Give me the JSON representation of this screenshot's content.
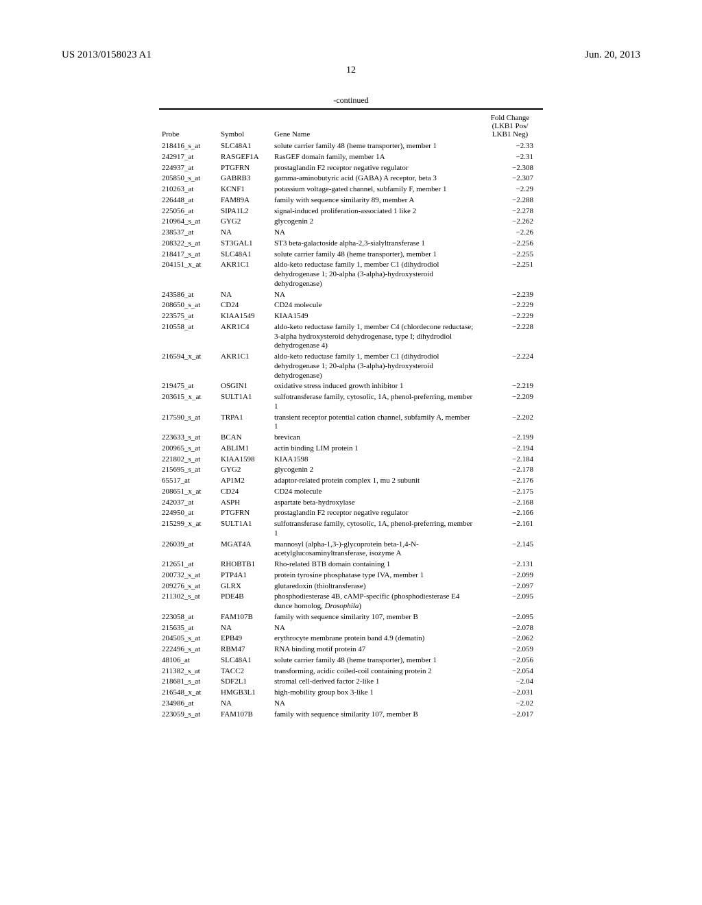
{
  "header": {
    "left": "US 2013/0158023 A1",
    "right": "Jun. 20, 2013"
  },
  "page_number": "12",
  "table": {
    "continued_label": "-continued",
    "columns": {
      "probe": "Probe",
      "symbol": "Symbol",
      "gene": "Gene Name",
      "fc_line1": "Fold Change",
      "fc_line2": "(LKB1 Pos/",
      "fc_line3": "LKB1 Neg)"
    },
    "rows": [
      {
        "probe": "218416_s_at",
        "symbol": "SLC48A1",
        "gene": "solute carrier family 48 (heme transporter), member 1",
        "fc": "−2.33"
      },
      {
        "probe": "242917_at",
        "symbol": "RASGEF1A",
        "gene": "RasGEF domain family, member 1A",
        "fc": "−2.31"
      },
      {
        "probe": "224937_at",
        "symbol": "PTGFRN",
        "gene": "prostaglandin F2 receptor negative regulator",
        "fc": "−2.308"
      },
      {
        "probe": "205850_s_at",
        "symbol": "GABRB3",
        "gene": "gamma-aminobutyric acid (GABA) A receptor, beta 3",
        "fc": "−2.307"
      },
      {
        "probe": "210263_at",
        "symbol": "KCNF1",
        "gene": "potassium voltage-gated channel, subfamily F, member 1",
        "fc": "−2.29"
      },
      {
        "probe": "226448_at",
        "symbol": "FAM89A",
        "gene": "family with sequence similarity 89, member A",
        "fc": "−2.288"
      },
      {
        "probe": "225056_at",
        "symbol": "SIPA1L2",
        "gene": "signal-induced proliferation-associated 1 like 2",
        "fc": "−2.278"
      },
      {
        "probe": "210964_s_at",
        "symbol": "GYG2",
        "gene": "glycogenin 2",
        "fc": "−2.262"
      },
      {
        "probe": "238537_at",
        "symbol": "NA",
        "gene": "NA",
        "fc": "−2.26"
      },
      {
        "probe": "208322_s_at",
        "symbol": "ST3GAL1",
        "gene": "ST3 beta-galactoside alpha-2,3-sialyltransferase 1",
        "fc": "−2.256"
      },
      {
        "probe": "218417_s_at",
        "symbol": "SLC48A1",
        "gene": "solute carrier family 48 (heme transporter), member 1",
        "fc": "−2.255"
      },
      {
        "probe": "204151_x_at",
        "symbol": "AKR1C1",
        "gene": "aldo-keto reductase family 1, member C1 (dihydrodiol dehydrogenase 1; 20-alpha (3-alpha)-hydroxysteroid dehydrogenase)",
        "fc": "−2.251"
      },
      {
        "probe": "243586_at",
        "symbol": "NA",
        "gene": "NA",
        "fc": "−2.239"
      },
      {
        "probe": "208650_s_at",
        "symbol": "CD24",
        "gene": "CD24 molecule",
        "fc": "−2.229"
      },
      {
        "probe": "223575_at",
        "symbol": "KIAA1549",
        "gene": "KIAA1549",
        "fc": "−2.229"
      },
      {
        "probe": "210558_at",
        "symbol": "AKR1C4",
        "gene": "aldo-keto reductase family 1, member C4 (chlordecone reductase; 3-alpha hydroxysteroid dehydrogenase, type I; dihydrodiol dehydrogenase 4)",
        "fc": "−2.228"
      },
      {
        "probe": "216594_x_at",
        "symbol": "AKR1C1",
        "gene": "aldo-keto reductase family 1, member C1 (dihydrodiol dehydrogenase 1; 20-alpha (3-alpha)-hydroxysteroid dehydrogenase)",
        "fc": "−2.224"
      },
      {
        "probe": "219475_at",
        "symbol": "OSGIN1",
        "gene": "oxidative stress induced growth inhibitor 1",
        "fc": "−2.219"
      },
      {
        "probe": "203615_x_at",
        "symbol": "SULT1A1",
        "gene": "sulfotransferase family, cytosolic, 1A, phenol-preferring, member 1",
        "fc": "−2.209"
      },
      {
        "probe": "217590_s_at",
        "symbol": "TRPA1",
        "gene": "transient receptor potential cation channel, subfamily A, member 1",
        "fc": "−2.202"
      },
      {
        "probe": "223633_s_at",
        "symbol": "BCAN",
        "gene": "brevican",
        "fc": "−2.199"
      },
      {
        "probe": "200965_s_at",
        "symbol": "ABLIM1",
        "gene": "actin binding LIM protein 1",
        "fc": "−2.194"
      },
      {
        "probe": "221802_s_at",
        "symbol": "KIAA1598",
        "gene": "KIAA1598",
        "fc": "−2.184"
      },
      {
        "probe": "215695_s_at",
        "symbol": "GYG2",
        "gene": "glycogenin 2",
        "fc": "−2.178"
      },
      {
        "probe": "65517_at",
        "symbol": "AP1M2",
        "gene": "adaptor-related protein complex 1, mu 2 subunit",
        "fc": "−2.176"
      },
      {
        "probe": "208651_x_at",
        "symbol": "CD24",
        "gene": "CD24 molecule",
        "fc": "−2.175"
      },
      {
        "probe": "242037_at",
        "symbol": "ASPH",
        "gene": "aspartate beta-hydroxylase",
        "fc": "−2.168"
      },
      {
        "probe": "224950_at",
        "symbol": "PTGFRN",
        "gene": "prostaglandin F2 receptor negative regulator",
        "fc": "−2.166"
      },
      {
        "probe": "215299_x_at",
        "symbol": "SULT1A1",
        "gene": "sulfotransferase family, cytosolic, 1A, phenol-preferring, member 1",
        "fc": "−2.161"
      },
      {
        "probe": "226039_at",
        "symbol": "MGAT4A",
        "gene": "mannosyl (alpha-1,3-)-glycoprotein beta-1,4-N-acetylglucosaminyltransferase, isozyme A",
        "fc": "−2.145"
      },
      {
        "probe": "212651_at",
        "symbol": "RHOBTB1",
        "gene": "Rho-related BTB domain containing 1",
        "fc": "−2.131"
      },
      {
        "probe": "200732_s_at",
        "symbol": "PTP4A1",
        "gene": "protein tyrosine phosphatase type IVA, member 1",
        "fc": "−2.099"
      },
      {
        "probe": "209276_s_at",
        "symbol": "GLRX",
        "gene": "glutaredoxin (thioltransferase)",
        "fc": "−2.097"
      },
      {
        "probe": "211302_s_at",
        "symbol": "PDE4B",
        "gene": "phosphodiesterase 4B, cAMP-specific (phosphodiesterase E4 dunce homolog, <i>Drosophila</i>)",
        "fc": "−2.095",
        "html": true
      },
      {
        "probe": "223058_at",
        "symbol": "FAM107B",
        "gene": "family with sequence similarity 107, member B",
        "fc": "−2.095"
      },
      {
        "probe": "215635_at",
        "symbol": "NA",
        "gene": "NA",
        "fc": "−2.078"
      },
      {
        "probe": "204505_s_at",
        "symbol": "EPB49",
        "gene": "erythrocyte membrane protein band 4.9 (dematin)",
        "fc": "−2.062"
      },
      {
        "probe": "222496_s_at",
        "symbol": "RBM47",
        "gene": "RNA binding motif protein 47",
        "fc": "−2.059"
      },
      {
        "probe": "48106_at",
        "symbol": "SLC48A1",
        "gene": "solute carrier family 48 (heme transporter), member 1",
        "fc": "−2.056"
      },
      {
        "probe": "211382_s_at",
        "symbol": "TACC2",
        "gene": "transforming, acidic coiled-coil containing protein 2",
        "fc": "−2.054"
      },
      {
        "probe": "218681_s_at",
        "symbol": "SDF2L1",
        "gene": "stromal cell-derived factor 2-like 1",
        "fc": "−2.04"
      },
      {
        "probe": "216548_x_at",
        "symbol": "HMGB3L1",
        "gene": "high-mobility group box 3-like 1",
        "fc": "−2.031"
      },
      {
        "probe": "234986_at",
        "symbol": "NA",
        "gene": "NA",
        "fc": "−2.02"
      },
      {
        "probe": "223059_s_at",
        "symbol": "FAM107B",
        "gene": "family with sequence similarity 107, member B",
        "fc": "−2.017"
      }
    ]
  }
}
